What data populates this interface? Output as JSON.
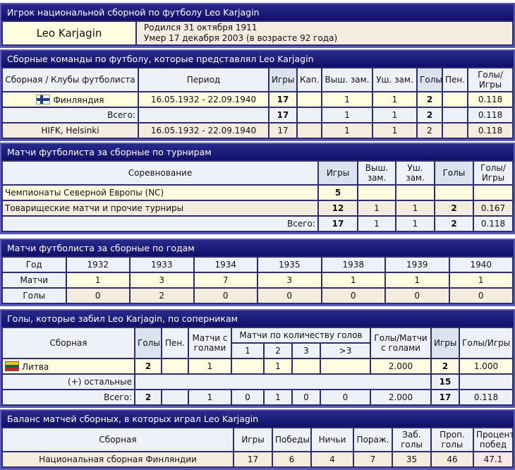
{
  "player": {
    "title": "Игрок национальной сборной по футболу Leo Karjagin",
    "name": "Leo Karjagin",
    "born": "Родился 31 октября 1911",
    "died": "Умер 17 декабря 2003 (в возрасте 92 года)"
  },
  "teams": {
    "title": "Сборные команды по футболу, которые представлял Leo Karjagin",
    "headers": [
      "Сборная / Клубы футболиста",
      "Период",
      "Игры",
      "Кап.",
      "Выш. зам.",
      "Уш. зам.",
      "Голы",
      "Пен.",
      "Голы/ Игры"
    ],
    "rows": [
      [
        "Финляндия",
        "16.05.1932 - 22.09.1940",
        "17",
        "",
        "1",
        "1",
        "2",
        "",
        "0.118"
      ],
      [
        "Всего:",
        "",
        "17",
        "",
        "1",
        "1",
        "2",
        "",
        "0.118"
      ],
      [
        "HIFK, Helsinki",
        "16.05.1932 - 22.09.1940",
        "17",
        "",
        "1",
        "1",
        "2",
        "",
        "0.118"
      ]
    ]
  },
  "tournaments": {
    "title": "Матчи футболиста за сборные по турнирам",
    "headers": [
      "Соревнование",
      "Игры",
      "Выш. зам.",
      "Уш. зам.",
      "Голы",
      "Голы/ Игры"
    ],
    "rows": [
      [
        "Чемпионаты Северной Европы (NC)",
        "5",
        "",
        "",
        "",
        ""
      ],
      [
        "Товарищеские матчи и прочие турниры",
        "12",
        "1",
        "1",
        "2",
        "0.167"
      ],
      [
        "Всего:",
        "17",
        "1",
        "1",
        "2",
        "0.118"
      ]
    ]
  },
  "years": {
    "title": "Матчи футболиста за сборные по годам",
    "headers": [
      "Год",
      "1932",
      "1933",
      "1934",
      "1935",
      "1938",
      "1939",
      "1940"
    ],
    "rows": [
      [
        "Матчи",
        "1",
        "3",
        "7",
        "3",
        "1",
        "1",
        "1"
      ],
      [
        "Голы",
        "0",
        "2",
        "0",
        "0",
        "0",
        "0",
        "0"
      ]
    ]
  },
  "opponents": {
    "title": "Голы, которые забил Leo Karjagin, по соперникам",
    "headers": [
      "Сборная",
      "Голы",
      "Пен.",
      "Матчи с голами",
      "Матчи по количеству голов",
      "Голы/Матчи с голами",
      "Игры",
      "Голы/Игры"
    ],
    "sub_headers": [
      "1",
      "2",
      "3",
      ">3"
    ],
    "rows": [
      [
        "Литва",
        "2",
        "",
        "1",
        "",
        "1",
        "",
        "",
        "2.000",
        "2",
        "1.000"
      ],
      [
        "Всего:",
        "2",
        "",
        "1",
        "0",
        "1",
        "0",
        "0",
        "2.000",
        "17",
        "0.118"
      ]
    ],
    "others_label": "(+) остальные",
    "others_games": "15"
  },
  "balance": {
    "title": "Баланс матчей сборных, в которых играл Leo Karjagin",
    "headers": [
      "Сборная",
      "Игры",
      "Победы",
      "Ничьи",
      "Пораж.",
      "Заб. голы",
      "Проп. голы",
      "Процент побед"
    ],
    "rows": [
      [
        "Национальная сборная Финляндии",
        "17",
        "6",
        "4",
        "7",
        "35",
        "46",
        "47.1"
      ]
    ]
  },
  "flags": {
    "finland": "finland-flag",
    "lithuania": "lithuania-flag"
  }
}
